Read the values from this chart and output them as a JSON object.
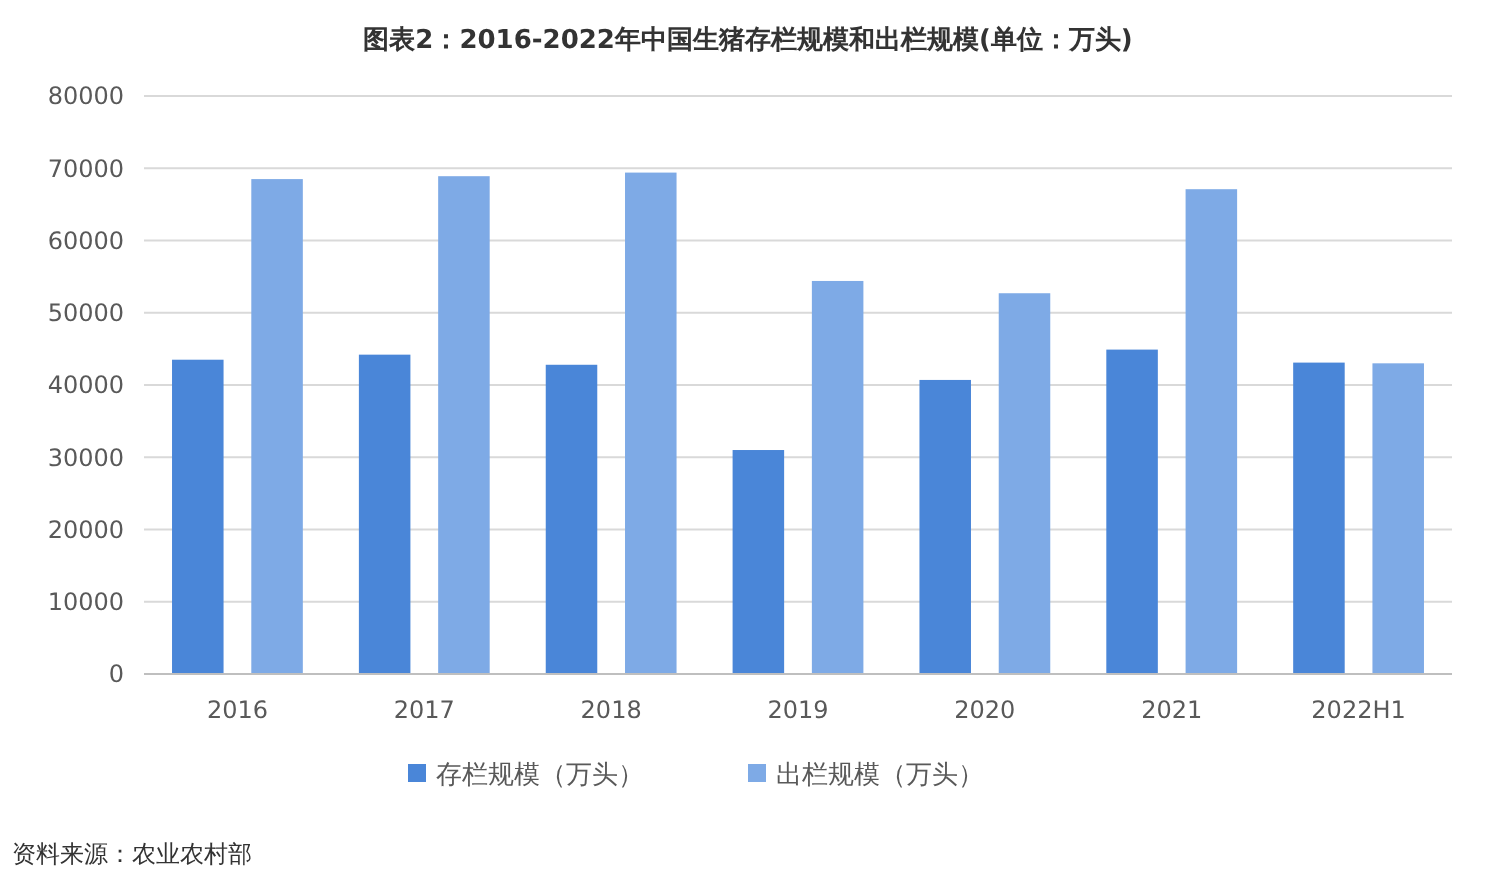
{
  "chart_data": {
    "type": "bar",
    "title": "图表2：2016-2022年中国生猪存栏规模和出栏规模(单位：万头)",
    "categories": [
      "2016",
      "2017",
      "2018",
      "2019",
      "2020",
      "2021",
      "2022H1"
    ],
    "series": [
      {
        "name": "存栏规模（万头）",
        "color": "#4a86d8",
        "values": [
          43500,
          44200,
          42800,
          31000,
          40700,
          44900,
          43100
        ]
      },
      {
        "name": "出栏规模（万头）",
        "color": "#7eaae6",
        "values": [
          68500,
          68900,
          69400,
          54400,
          52700,
          67100,
          43000
        ]
      }
    ],
    "ylim": [
      0,
      80000
    ],
    "yticks": [
      0,
      10000,
      20000,
      30000,
      40000,
      50000,
      60000,
      70000,
      80000
    ],
    "grid": "y",
    "legend": "bottom",
    "annotations": [
      "资料来源：农业农村部"
    ]
  }
}
